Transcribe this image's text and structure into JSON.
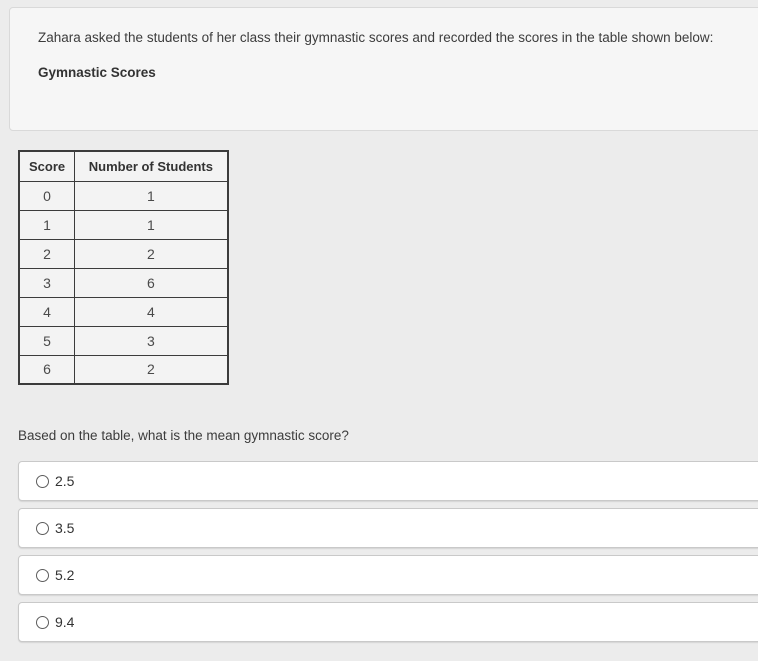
{
  "prompt": {
    "intro": "Zahara asked the students of her class their gymnastic scores and recorded the scores in the table shown below:",
    "table_title": "Gymnastic Scores"
  },
  "table": {
    "headers": [
      "Score",
      "Number of Students"
    ],
    "rows": [
      [
        "0",
        "1"
      ],
      [
        "1",
        "1"
      ],
      [
        "2",
        "2"
      ],
      [
        "3",
        "6"
      ],
      [
        "4",
        "4"
      ],
      [
        "5",
        "3"
      ],
      [
        "6",
        "2"
      ]
    ]
  },
  "question": "Based on the table, what is the mean gymnastic score?",
  "options": [
    {
      "label": "2.5",
      "selected": false
    },
    {
      "label": "3.5",
      "selected": false
    },
    {
      "label": "5.2",
      "selected": false
    },
    {
      "label": "9.4",
      "selected": false
    }
  ],
  "colors": {
    "page_background": "#ececec",
    "card_background": "#f6f6f6",
    "card_border": "#d9d9d9",
    "table_border": "#3b3b3b",
    "table_cell_background": "#f3f3f3",
    "option_background": "#ffffff",
    "option_border": "#c9c9c9",
    "text": "#3c3c3c"
  }
}
